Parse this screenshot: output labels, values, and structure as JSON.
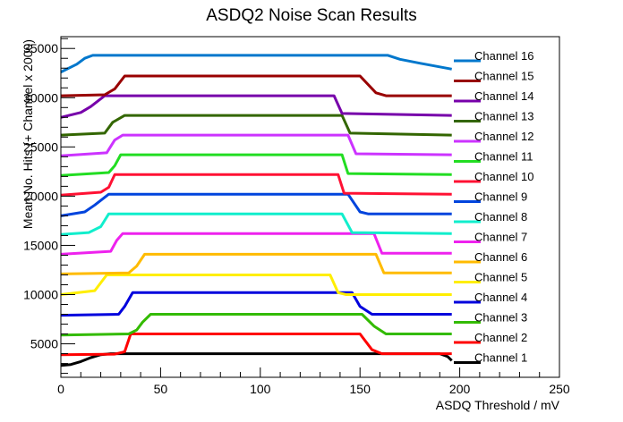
{
  "chart_data": {
    "type": "line",
    "title": "ASDQ2 Noise Scan Results",
    "xlabel": "ASDQ Threshold / mV",
    "ylabel": "Mean No. Hits (+ Channel x 2000)",
    "xlim": [
      0,
      250
    ],
    "ylim": [
      1600,
      36200
    ],
    "x_ticks": [
      0,
      50,
      100,
      150,
      200,
      250
    ],
    "y_ticks": [
      5000,
      10000,
      15000,
      20000,
      25000,
      30000,
      35000
    ],
    "x_tick_labels": [
      "0",
      "50",
      "100",
      "150",
      "200",
      "250"
    ],
    "y_tick_labels": [
      "5000",
      "10000",
      "15000",
      "20000",
      "25000",
      "30000",
      "35000"
    ],
    "grid": false,
    "legend_placement": "right",
    "series": [
      {
        "name": "Channel 1",
        "color": "#000000",
        "points": [
          [
            0,
            2800
          ],
          [
            5,
            2900
          ],
          [
            10,
            3200
          ],
          [
            15,
            3600
          ],
          [
            20,
            3900
          ],
          [
            25,
            4000
          ],
          [
            190,
            4000
          ],
          [
            194,
            3700
          ],
          [
            196,
            3300
          ]
        ]
      },
      {
        "name": "Channel 2",
        "color": "#ff0000",
        "points": [
          [
            0,
            3900
          ],
          [
            27,
            3950
          ],
          [
            32,
            4200
          ],
          [
            35,
            6000
          ],
          [
            150,
            6000
          ],
          [
            156,
            4400
          ],
          [
            161,
            4000
          ],
          [
            196,
            4000
          ]
        ]
      },
      {
        "name": "Channel 3",
        "color": "#33bb00",
        "points": [
          [
            0,
            5900
          ],
          [
            34,
            6000
          ],
          [
            38,
            6400
          ],
          [
            41,
            7200
          ],
          [
            45,
            8000
          ],
          [
            151,
            8000
          ],
          [
            157,
            6800
          ],
          [
            163,
            6000
          ],
          [
            196,
            6000
          ]
        ]
      },
      {
        "name": "Channel 4",
        "color": "#0000dd",
        "points": [
          [
            0,
            7900
          ],
          [
            29,
            8000
          ],
          [
            32,
            8800
          ],
          [
            36,
            10200
          ],
          [
            146,
            10200
          ],
          [
            150,
            8800
          ],
          [
            156,
            8000
          ],
          [
            196,
            8000
          ]
        ]
      },
      {
        "name": "Channel 5",
        "color": "#ffee00",
        "points": [
          [
            0,
            10000
          ],
          [
            17,
            10400
          ],
          [
            23,
            12000
          ],
          [
            135,
            12000
          ],
          [
            139,
            10200
          ],
          [
            143,
            10000
          ],
          [
            196,
            10000
          ]
        ]
      },
      {
        "name": "Channel 6",
        "color": "#ffbb00",
        "points": [
          [
            0,
            12100
          ],
          [
            34,
            12200
          ],
          [
            38,
            12900
          ],
          [
            42,
            14100
          ],
          [
            158,
            14100
          ],
          [
            162,
            12200
          ],
          [
            196,
            12200
          ]
        ]
      },
      {
        "name": "Channel 7",
        "color": "#ee22ee",
        "points": [
          [
            0,
            14100
          ],
          [
            25,
            14400
          ],
          [
            28,
            15500
          ],
          [
            31,
            16200
          ],
          [
            157,
            16200
          ],
          [
            161,
            14200
          ],
          [
            196,
            14200
          ]
        ]
      },
      {
        "name": "Channel 8",
        "color": "#11eecc",
        "points": [
          [
            0,
            16100
          ],
          [
            14,
            16300
          ],
          [
            20,
            16900
          ],
          [
            24,
            18200
          ],
          [
            141,
            18200
          ],
          [
            146,
            16300
          ],
          [
            196,
            16200
          ]
        ]
      },
      {
        "name": "Channel 9",
        "color": "#0044dd",
        "points": [
          [
            0,
            18000
          ],
          [
            12,
            18400
          ],
          [
            17,
            19100
          ],
          [
            24,
            20200
          ],
          [
            144,
            20200
          ],
          [
            150,
            18400
          ],
          [
            154,
            18200
          ],
          [
            196,
            18200
          ]
        ]
      },
      {
        "name": "Channel 10",
        "color": "#ff1133",
        "points": [
          [
            0,
            20100
          ],
          [
            20,
            20400
          ],
          [
            24,
            20900
          ],
          [
            27,
            22200
          ],
          [
            139,
            22200
          ],
          [
            142,
            20300
          ],
          [
            196,
            20200
          ]
        ]
      },
      {
        "name": "Channel 11",
        "color": "#22dd22",
        "points": [
          [
            0,
            22100
          ],
          [
            24,
            22400
          ],
          [
            27,
            23100
          ],
          [
            30,
            24200
          ],
          [
            141,
            24200
          ],
          [
            144,
            22300
          ],
          [
            196,
            22200
          ]
        ]
      },
      {
        "name": "Channel 12",
        "color": "#cc33ff",
        "points": [
          [
            0,
            24100
          ],
          [
            23,
            24400
          ],
          [
            27,
            25700
          ],
          [
            31,
            26200
          ],
          [
            144,
            26200
          ],
          [
            148,
            24300
          ],
          [
            196,
            24200
          ]
        ]
      },
      {
        "name": "Channel 13",
        "color": "#336600",
        "points": [
          [
            0,
            26200
          ],
          [
            22,
            26400
          ],
          [
            26,
            27500
          ],
          [
            32,
            28200
          ],
          [
            141,
            28200
          ],
          [
            145,
            26400
          ],
          [
            196,
            26200
          ]
        ]
      },
      {
        "name": "Channel 14",
        "color": "#7700aa",
        "points": [
          [
            0,
            28000
          ],
          [
            10,
            28500
          ],
          [
            15,
            29100
          ],
          [
            22,
            30200
          ],
          [
            137,
            30200
          ],
          [
            141,
            28400
          ],
          [
            196,
            28200
          ]
        ]
      },
      {
        "name": "Channel 15",
        "color": "#990000",
        "points": [
          [
            0,
            30200
          ],
          [
            22,
            30300
          ],
          [
            27,
            30900
          ],
          [
            32,
            32200
          ],
          [
            150,
            32200
          ],
          [
            158,
            30500
          ],
          [
            163,
            30200
          ],
          [
            196,
            30200
          ]
        ]
      },
      {
        "name": "Channel 16",
        "color": "#0077cc",
        "points": [
          [
            0,
            32600
          ],
          [
            8,
            33400
          ],
          [
            12,
            34000
          ],
          [
            16,
            34300
          ],
          [
            164,
            34300
          ],
          [
            170,
            33900
          ],
          [
            180,
            33500
          ],
          [
            196,
            32900
          ]
        ]
      }
    ]
  }
}
